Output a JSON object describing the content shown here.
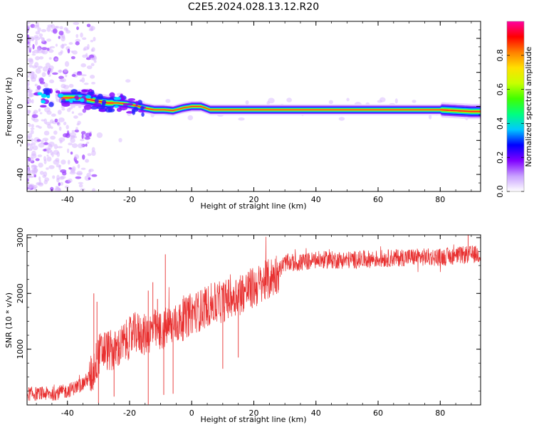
{
  "title": "C2E5.2024.028.13.12.R20",
  "chart_data": [
    {
      "type": "heatmap",
      "xlabel": "Height of straight line (km)",
      "ylabel": "Frequency (Hz)",
      "xlim": [
        -53,
        93
      ],
      "ylim": [
        -50,
        50
      ],
      "xticks": [
        -40,
        -20,
        0,
        20,
        40,
        60,
        80
      ],
      "yticks": [
        -40,
        -20,
        0,
        20,
        40
      ],
      "colorbar": {
        "label": "Normalized spectral amplitude",
        "range": [
          0,
          1
        ],
        "ticks": [
          0.0,
          0.2,
          0.4,
          0.6,
          0.8
        ],
        "colors": [
          "#ffffff",
          "#c8a0ff",
          "#8000ff",
          "#0000ff",
          "#00c8ff",
          "#00ff80",
          "#40ff00",
          "#c8ff00",
          "#ffe000",
          "#ff8000",
          "#ff0000",
          "#ff00a0"
        ]
      },
      "ridge": {
        "x": [
          -40,
          -36,
          -33,
          -30,
          -27,
          -24,
          -21,
          -18,
          -15,
          -12,
          -9,
          -6,
          -3,
          0,
          3,
          6,
          10,
          20,
          40,
          60,
          80,
          90
        ],
        "frequency": [
          5,
          5,
          4,
          3,
          2,
          2,
          1.5,
          0.5,
          -1,
          -2,
          -2,
          -2.5,
          -1,
          0,
          0,
          -2,
          -2,
          -2,
          -2,
          -2,
          -2,
          -3
        ]
      }
    },
    {
      "type": "line",
      "xlabel": "Height of straight line (km)",
      "ylabel": "SNR (10 * v/v)",
      "xlim": [
        -53,
        93
      ],
      "ylim": [
        0,
        3050
      ],
      "xticks": [
        -40,
        -20,
        0,
        20,
        40,
        60,
        80
      ],
      "yticks": [
        1000,
        2000,
        3000
      ],
      "color": "#e83030",
      "series": [
        {
          "x": [
            -53,
            -45,
            -40,
            -35,
            -32,
            -30,
            -28,
            -25,
            -22,
            -20,
            -18,
            -15,
            -12,
            -10,
            -8,
            -5,
            -2,
            0,
            3,
            6,
            10,
            15,
            20,
            25,
            28,
            30,
            35,
            40,
            50,
            60,
            70,
            80,
            90,
            93
          ],
          "y": [
            200,
            200,
            250,
            380,
            550,
            900,
            1000,
            950,
            1100,
            1200,
            1300,
            1250,
            1350,
            1300,
            1400,
            1450,
            1550,
            1650,
            1700,
            1800,
            1850,
            2000,
            2100,
            2250,
            2400,
            2550,
            2550,
            2600,
            2600,
            2620,
            2650,
            2650,
            2700,
            2700
          ]
        }
      ],
      "spikes": [
        {
          "x": -31.5,
          "y": 2000
        },
        {
          "x": -30.5,
          "y": 1850
        },
        {
          "x": -14,
          "y": 2050
        },
        {
          "x": -12.5,
          "y": 2200
        },
        {
          "x": -11,
          "y": 1900
        },
        {
          "x": -8.5,
          "y": 2700
        },
        {
          "x": 30,
          "y": 2650
        },
        {
          "x": 89,
          "y": 3050
        }
      ],
      "dips": [
        {
          "x": -30,
          "y": 30
        },
        {
          "x": -25,
          "y": 150
        },
        {
          "x": -14,
          "y": 10
        },
        {
          "x": -9,
          "y": 180
        },
        {
          "x": -6,
          "y": 200
        },
        {
          "x": 10,
          "y": 650
        },
        {
          "x": 15,
          "y": 850
        }
      ]
    }
  ]
}
